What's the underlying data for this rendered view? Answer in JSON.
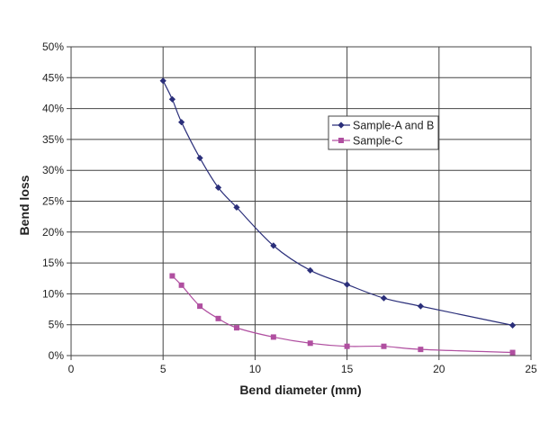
{
  "chart_data": {
    "type": "line",
    "xlabel": "Bend diameter (mm)",
    "ylabel": "Bend loss",
    "xlim": [
      0,
      25
    ],
    "ylim": [
      0,
      0.5
    ],
    "x_ticks": [
      0,
      5,
      10,
      15,
      20,
      25
    ],
    "y_ticks": [
      0,
      0.05,
      0.1,
      0.15,
      0.2,
      0.25,
      0.3,
      0.35,
      0.4,
      0.45,
      0.5
    ],
    "x_tick_labels": [
      "0",
      "5",
      "10",
      "15",
      "20",
      "25"
    ],
    "y_tick_labels": [
      "0%",
      "5%",
      "10%",
      "15%",
      "20%",
      "25%",
      "30%",
      "35%",
      "40%",
      "45%",
      "50%"
    ],
    "grid": true,
    "legend_position": "upper-right",
    "series": [
      {
        "name": "Sample-A and B",
        "color": "#2b2f7a",
        "marker": "diamond",
        "x": [
          5,
          5.5,
          6,
          7,
          8,
          9,
          11,
          13,
          15,
          17,
          19,
          24
        ],
        "y": [
          0.445,
          0.415,
          0.378,
          0.32,
          0.272,
          0.24,
          0.178,
          0.138,
          0.115,
          0.093,
          0.08,
          0.049
        ]
      },
      {
        "name": "Sample-C",
        "color": "#b04fa0",
        "marker": "square",
        "x": [
          5.5,
          6,
          7,
          8,
          9,
          11,
          13,
          15,
          17,
          19,
          24
        ],
        "y": [
          0.129,
          0.114,
          0.08,
          0.06,
          0.045,
          0.03,
          0.02,
          0.015,
          0.015,
          0.01,
          0.005
        ]
      }
    ]
  }
}
